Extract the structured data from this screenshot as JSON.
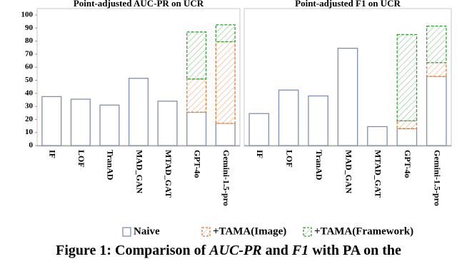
{
  "chart_data": [
    {
      "type": "bar",
      "stacked": true,
      "title": "Point-adjusted AUC-PR on UCR",
      "categories": [
        "IF",
        "LOF",
        "TranAD",
        "MAD_GAN",
        "MTAD_GAT",
        "GPT-4o",
        "Gemini-1.5-pro"
      ],
      "series": [
        {
          "name": "Naive",
          "color": "#7f8fb0",
          "hatch": false,
          "values": [
            37.5,
            35.5,
            31,
            51.5,
            34,
            25.5,
            17
          ]
        },
        {
          "name": "+TAMA(Image)",
          "color": "#e07b39",
          "hatch": true,
          "values": [
            null,
            null,
            null,
            null,
            null,
            25.5,
            62.5
          ]
        },
        {
          "name": "+TAMA(Framework)",
          "color": "#3d9a3d",
          "hatch": true,
          "values": [
            null,
            null,
            null,
            null,
            null,
            36,
            13
          ]
        }
      ],
      "ylim": [
        0,
        100
      ],
      "yticks": [
        0,
        10,
        20,
        30,
        40,
        50,
        60,
        70,
        80,
        90,
        100
      ]
    },
    {
      "type": "bar",
      "stacked": true,
      "title": "Point-adjusted F1 on UCR",
      "categories": [
        "IF",
        "LOF",
        "TranAD",
        "MAD_GAN",
        "MTAD_GAT",
        "GPT-4o",
        "Gemini-1.5-pro"
      ],
      "series": [
        {
          "name": "Naive",
          "color": "#7f8fb0",
          "hatch": false,
          "values": [
            24.5,
            42.5,
            38,
            74.5,
            14.5,
            13,
            53
          ]
        },
        {
          "name": "+TAMA(Image)",
          "color": "#e07b39",
          "hatch": true,
          "values": [
            null,
            null,
            null,
            null,
            null,
            6,
            10.5
          ]
        },
        {
          "name": "+TAMA(Framework)",
          "color": "#3d9a3d",
          "hatch": true,
          "values": [
            null,
            null,
            null,
            null,
            null,
            66,
            28
          ]
        }
      ],
      "ylim": [
        0,
        100
      ]
    }
  ],
  "caption": [
    "Figure 1: Comparison of ",
    "AUC-PR",
    " and ",
    "F1",
    " with PA on the"
  ]
}
